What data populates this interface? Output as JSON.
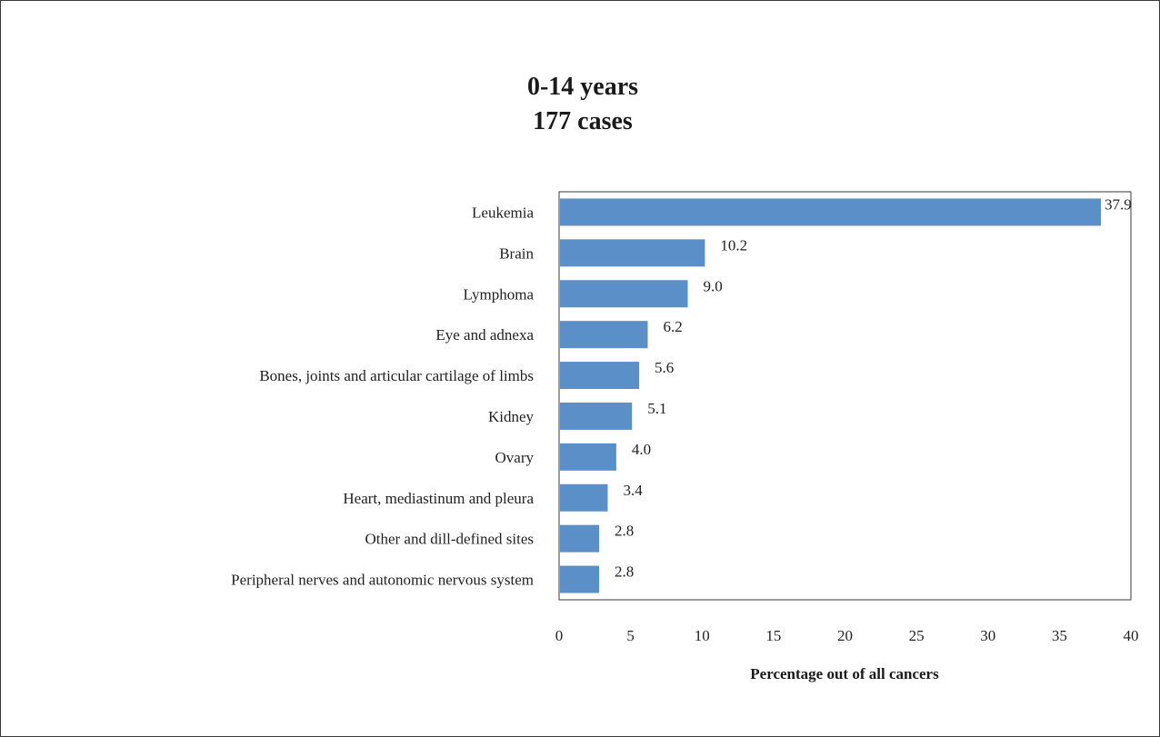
{
  "chart_data": {
    "type": "bar",
    "orientation": "horizontal",
    "title": [
      "0-14 years",
      "177 cases"
    ],
    "categories": [
      "Leukemia",
      "Brain",
      "Lymphoma",
      "Eye and adnexa",
      "Bones, joints and articular cartilage of limbs",
      "Kidney",
      "Ovary",
      "Heart, mediastinum and pleura",
      "Other and dill-defined sites",
      "Peripheral nerves and autonomic nervous system"
    ],
    "values": [
      37.9,
      10.2,
      9.0,
      6.2,
      5.6,
      5.1,
      4.0,
      3.4,
      2.8,
      2.8
    ],
    "value_labels": [
      "37.9",
      "10.2",
      "9.0",
      "6.2",
      "5.6",
      "5.1",
      "4.0",
      "3.4",
      "2.8",
      "2.8"
    ],
    "xlabel": "Percentage out of all cancers",
    "xlim": [
      0,
      40
    ],
    "xticks": [
      0,
      5,
      10,
      15,
      20,
      25,
      30,
      35,
      40
    ],
    "grid": false,
    "bar_color": "#5b8fc8",
    "border_color": "#3a3a3a"
  }
}
